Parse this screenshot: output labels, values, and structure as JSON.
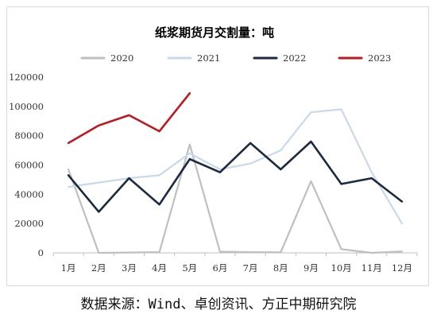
{
  "chart_data": {
    "type": "line",
    "title": "纸浆期货月交割量：吨",
    "categories": [
      "1月",
      "2月",
      "3月",
      "4月",
      "5月",
      "6月",
      "7月",
      "8月",
      "9月",
      "10月",
      "11月",
      "12月"
    ],
    "ylim": [
      0,
      120000
    ],
    "yticks": [
      "0",
      "20000",
      "40000",
      "60000",
      "80000",
      "100000",
      "120000"
    ],
    "grid": false,
    "legend_position": "top",
    "series": [
      {
        "name": "2020",
        "color": "#bfbfbf",
        "values": [
          57000,
          0,
          200,
          500,
          74000,
          800,
          500,
          300,
          49000,
          2500,
          0,
          1000
        ]
      },
      {
        "name": "2021",
        "color": "#c9d9ea",
        "values": [
          45000,
          48000,
          51000,
          53000,
          68000,
          57000,
          61000,
          70000,
          96000,
          98000,
          55000,
          20000
        ]
      },
      {
        "name": "2022",
        "color": "#1b2a41",
        "values": [
          53000,
          28000,
          51000,
          33000,
          64000,
          55000,
          75000,
          57000,
          76000,
          47000,
          51000,
          35000
        ]
      },
      {
        "name": "2023",
        "color": "#c0181f",
        "values": [
          75000,
          87000,
          94000,
          83000,
          109000,
          null,
          null,
          null,
          null,
          null,
          null,
          null
        ]
      }
    ]
  },
  "source_note": "数据来源：Wind、卓创资讯、方正中期研究院"
}
